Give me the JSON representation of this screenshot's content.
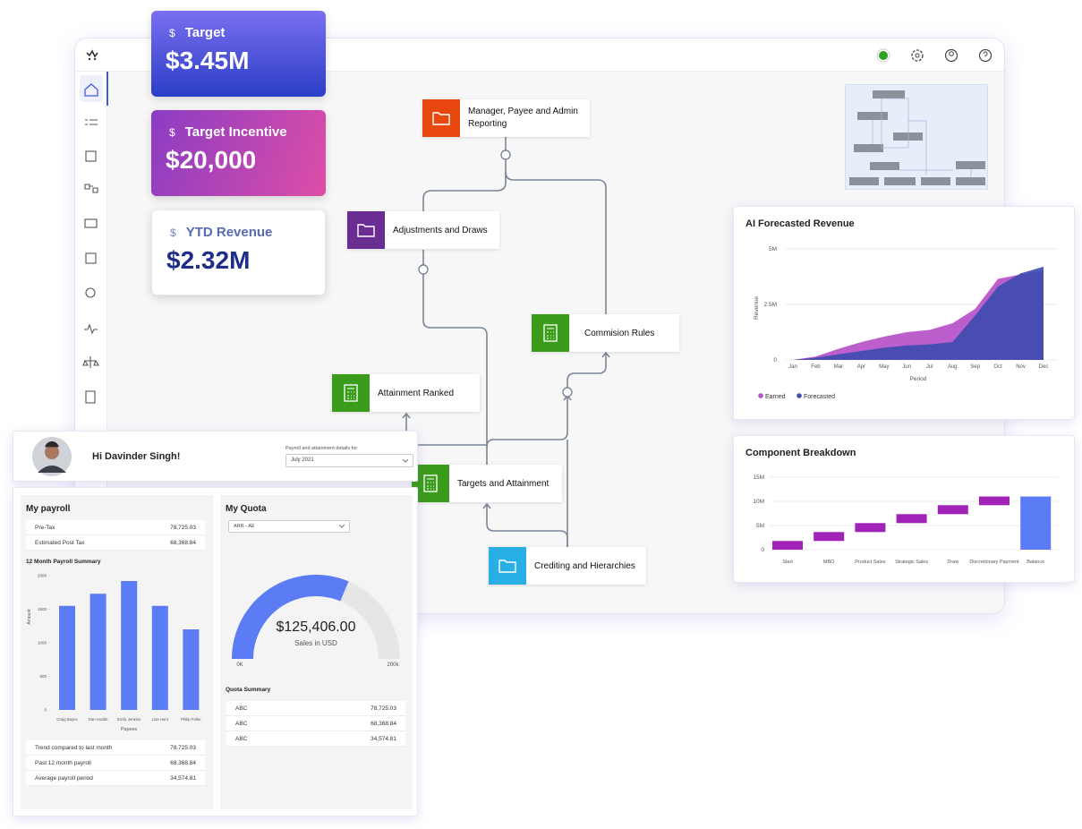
{
  "kpis": [
    {
      "icon": "$",
      "label": "Target",
      "value": "$3.45M"
    },
    {
      "icon": "$",
      "label": "Target Incentive",
      "value": "$20,000"
    },
    {
      "icon": "$",
      "label": "YTD Revenue",
      "value": "$2.32M"
    }
  ],
  "workflow": {
    "nodes": [
      "Manager, Payee and Admin Reporting",
      "Adjustments and Draws",
      "Commision Rules",
      "Attainment Ranked",
      "Targets and Attainment",
      "Crediting and Hierarchies"
    ]
  },
  "forecast_chart": {
    "type": "area",
    "title": "AI Forecasted Revenue",
    "y_label": "Revenue",
    "x_label": "Period",
    "categories": [
      "Jan",
      "Feb",
      "Mar",
      "Apr",
      "May",
      "Jun",
      "Jul",
      "Aug",
      "Sep",
      "Oct",
      "Nov",
      "Dec"
    ],
    "ylim": [
      0,
      5000000
    ],
    "yticks": [
      0,
      {
        "value": 2500000,
        "label": "2.5M"
      },
      {
        "value": 5000000,
        "label": "5M"
      }
    ],
    "grid": true,
    "legend": "bottom-left",
    "series": [
      {
        "name": "Earned",
        "color": "#b651c9",
        "values": [
          0,
          150000,
          500000,
          800000,
          1050000,
          1250000,
          1350000,
          1650000,
          2300000,
          3650000,
          3850000,
          4000000
        ]
      },
      {
        "name": "Forecasted",
        "color": "#3f4cb0",
        "values": [
          0,
          100000,
          250000,
          400000,
          550000,
          650000,
          700000,
          800000,
          2000000,
          3300000,
          3900000,
          4200000
        ]
      }
    ]
  },
  "component_chart": {
    "type": "waterfall",
    "title": "Component Breakdown",
    "categories": [
      "Start",
      "MBO",
      "Product Sales",
      "Strategic Sales",
      "Draw",
      "Discretionary Payment",
      "Balance"
    ],
    "values": [
      1800000,
      1850000,
      1850000,
      1850000,
      1850000,
      1800000,
      11000000
    ],
    "last_is_total": true,
    "colors": {
      "step": "#a022b6",
      "total": "#5b7cf4"
    },
    "ylim": [
      0,
      15000000
    ],
    "yticks": [
      0,
      {
        "value": 5000000,
        "label": "5M"
      },
      {
        "value": 10000000,
        "label": "10M"
      },
      {
        "value": 15000000,
        "label": "15M"
      }
    ],
    "grid": true
  },
  "greeting": "Hi Davinder Singh!",
  "period_picker": {
    "label": "Payroll and attainment details for:",
    "value": "July 2021"
  },
  "payroll": {
    "title": "My payroll",
    "rows": [
      [
        "Pre-Tax",
        "78,725.03"
      ],
      [
        "Estimated Post Tax",
        "68,368.84"
      ]
    ],
    "chart": {
      "type": "bar",
      "title": "12 Month Payroll Summary",
      "y_label": "Amount",
      "x_label": "Payees",
      "categories": [
        "Craig Bayes",
        "Dan Hodde",
        "Emily Jenkins",
        "Lisa Hunt",
        "Philip Fuller"
      ],
      "values": [
        1550,
        1730,
        1920,
        1550,
        1200
      ],
      "color": "#5b7cf4",
      "ylim": [
        0,
        2000
      ],
      "yticks": [
        0,
        500,
        1000,
        1500,
        2000
      ]
    },
    "summary": [
      [
        "Trend compared to last month",
        "78,725.03"
      ],
      [
        "Past 12 month payroll",
        "68,368.84"
      ],
      [
        "Average payroll period",
        "34,574.81"
      ]
    ]
  },
  "quota": {
    "title": "My Quota",
    "filter": "ARR - AE",
    "gauge": {
      "type": "gauge",
      "value": 125406,
      "value_label": "$125,406.00",
      "caption": "Sales in USD",
      "range": [
        {
          "value": 0,
          "label": "0K"
        },
        {
          "value": 200000,
          "label": "200k"
        }
      ],
      "color": "#5b7cf4",
      "track_color": "#e6e6e6"
    },
    "summary_title": "Quota Summary",
    "summary": [
      [
        "ABC",
        "78,725.03"
      ],
      [
        "ABC",
        "68,368.84"
      ],
      [
        "ABC",
        "34,574.81"
      ]
    ]
  }
}
